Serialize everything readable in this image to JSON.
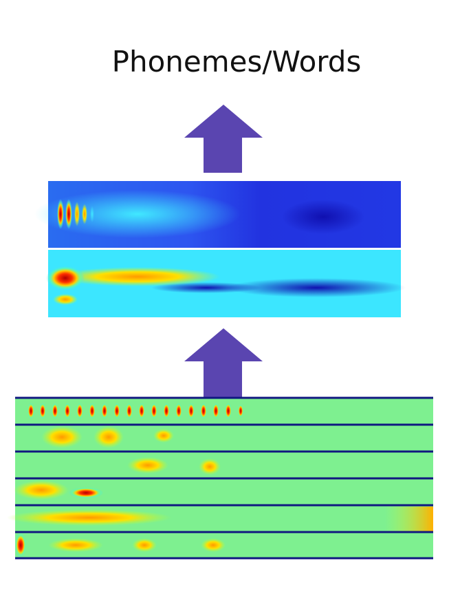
{
  "title": "Phonemes/Words"
}
